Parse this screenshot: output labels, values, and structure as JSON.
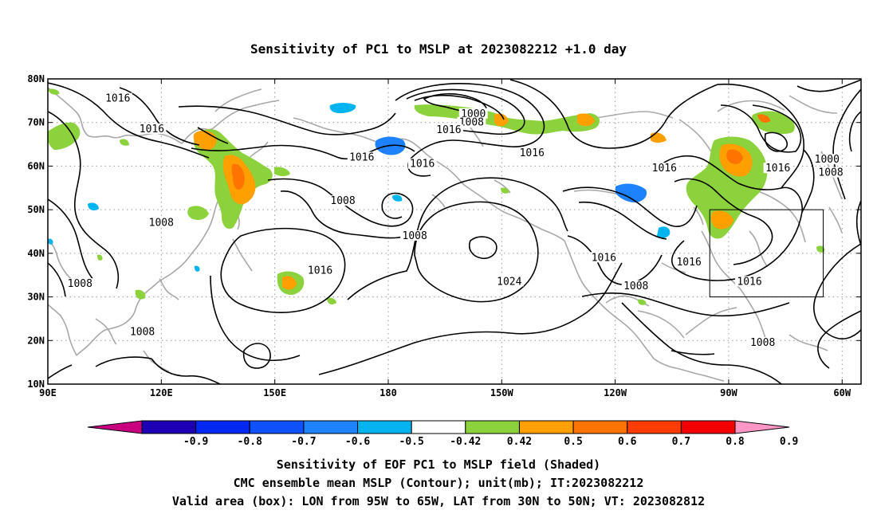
{
  "title": "Sensitivity of PC1 to MSLP at 2023082212 +1.0 day",
  "map": {
    "lon_range": [
      90,
      305
    ],
    "lat_range": [
      10,
      80
    ],
    "lat_ticks": [
      {
        "value": 80,
        "label": "80N"
      },
      {
        "value": 70,
        "label": "70N"
      },
      {
        "value": 60,
        "label": "60N"
      },
      {
        "value": 50,
        "label": "50N"
      },
      {
        "value": 40,
        "label": "40N"
      },
      {
        "value": 30,
        "label": "30N"
      },
      {
        "value": 20,
        "label": "20N"
      },
      {
        "value": 10,
        "label": "10N"
      }
    ],
    "lon_ticks": [
      {
        "value": 90,
        "label": "90E"
      },
      {
        "value": 120,
        "label": "120E"
      },
      {
        "value": 150,
        "label": "150E"
      },
      {
        "value": 180,
        "label": "180"
      },
      {
        "value": 210,
        "label": "150W"
      },
      {
        "value": 240,
        "label": "120W"
      },
      {
        "value": 270,
        "label": "90W"
      },
      {
        "value": 300,
        "label": "60W"
      }
    ],
    "grid": "dotted",
    "valid_box": {
      "lon": [
        265,
        295
      ],
      "lat": [
        30,
        50
      ]
    },
    "contour_labels": [
      {
        "text": "1016",
        "lon": 108.5,
        "lat": 75.5
      },
      {
        "text": "1016",
        "lon": 117.5,
        "lat": 68.5
      },
      {
        "text": "1016",
        "lon": 173.0,
        "lat": 62.0
      },
      {
        "text": "1000",
        "lon": 202.5,
        "lat": 72.0
      },
      {
        "text": "1008",
        "lon": 202.0,
        "lat": 70.0
      },
      {
        "text": "1016",
        "lon": 196.0,
        "lat": 68.3
      },
      {
        "text": "1016",
        "lon": 218.0,
        "lat": 63.0
      },
      {
        "text": "1016",
        "lon": 189.0,
        "lat": 60.5
      },
      {
        "text": "1016",
        "lon": 253.0,
        "lat": 59.5
      },
      {
        "text": "1016",
        "lon": 283.0,
        "lat": 59.5
      },
      {
        "text": "1000",
        "lon": 296.0,
        "lat": 61.5
      },
      {
        "text": "1008",
        "lon": 297.0,
        "lat": 58.5
      },
      {
        "text": "1008",
        "lon": 120.0,
        "lat": 47.0
      },
      {
        "text": "1008",
        "lon": 168.0,
        "lat": 52.0
      },
      {
        "text": "1008",
        "lon": 187.0,
        "lat": 44.0
      },
      {
        "text": "1016",
        "lon": 162.0,
        "lat": 36.0
      },
      {
        "text": "1008",
        "lon": 98.5,
        "lat": 33.0
      },
      {
        "text": "1024",
        "lon": 212.0,
        "lat": 33.5
      },
      {
        "text": "1016",
        "lon": 237.0,
        "lat": 39.0
      },
      {
        "text": "1016",
        "lon": 259.5,
        "lat": 38.0
      },
      {
        "text": "1016",
        "lon": 275.5,
        "lat": 33.5
      },
      {
        "text": "1008",
        "lon": 245.5,
        "lat": 32.5
      },
      {
        "text": "1008",
        "lon": 115.0,
        "lat": 22.0
      },
      {
        "text": "1008",
        "lon": 279.0,
        "lat": 19.5
      }
    ]
  },
  "colorbar": {
    "colors": [
      "#c8007f",
      "#1e00b4",
      "#0028f0",
      "#0f50ff",
      "#1e82ff",
      "#00b4f0",
      "#ffffff",
      "#8cd23c",
      "#ffa000",
      "#ff7300",
      "#ff3c00",
      "#f50000",
      "#ff96c8"
    ],
    "labels": [
      "-0.9",
      "-0.8",
      "-0.7",
      "-0.6",
      "-0.5",
      "-0.42",
      "0.42",
      "0.5",
      "0.6",
      "0.7",
      "0.8",
      "0.9"
    ]
  },
  "footer": {
    "line1": "Sensitivity of EOF PC1 to MSLP field (Shaded)",
    "line2": "CMC ensemble mean MSLP (Contour); unit(mb); IT:2023082212",
    "line3": "Valid area (box): LON from 95W to 65W, LAT from 30N to 50N; VT: 2023082812"
  }
}
